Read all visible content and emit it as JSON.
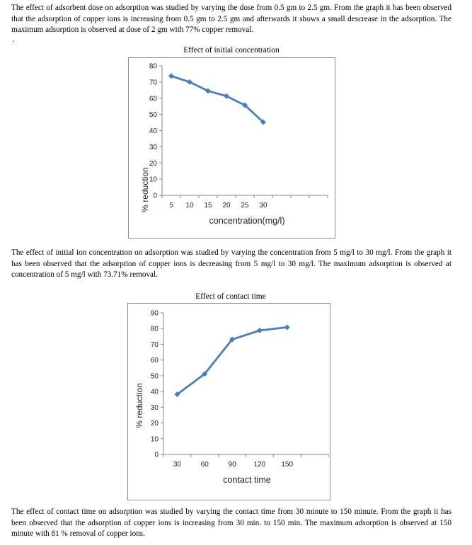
{
  "paragraphs": {
    "dose": "The effect of adsorbent dose on adsorption was studied by varying the dose from  0.5 gm to 2.5 gm. From the graph it has been observed that the adsorption of copper ions is increasing from 0.5 gm to 2.5 gm and afterwards it shows a small descrease in the adsorption. The maximum adsorption is observed at dose of 2 gm with 77% copper removal.",
    "stray_mark": ".",
    "concentration": "The effect of initial ion concentration on adsorption was studied by varying the concentration from 5 mg/l to 30 mg/l. From the graph  it has been observed  that the adsorption of copper ions is decreasing from 5 mg/l  to 30 mg/l. The maximum adsorption is observed at concentration of 5 mg/l  with 73.71% removal.",
    "contact_time": "The effect of contact time on adsorption was studied by varying the contact time from 30 minute to 150 minute. From the graph it has been observed that the adsorption of copper ions is increasing from 30 min. to 150 min. The maximum adsorption is observed at 150 minute with 81 % removal of copper ions."
  },
  "chart_data": [
    {
      "type": "line",
      "title": "Effect of initial concentration",
      "xlabel": "concentration(mg/l)",
      "ylabel": "% reduction",
      "x": [
        5,
        10,
        15,
        20,
        25,
        30
      ],
      "x_tick_labels": [
        "5",
        "10",
        "15",
        "20",
        "25",
        "30"
      ],
      "y_ticks": [
        "0",
        "10",
        "20",
        "30",
        "40",
        "50",
        "60",
        "70",
        "80"
      ],
      "ylim": [
        0,
        80
      ],
      "series": [
        {
          "values": [
            73.7,
            70,
            64.5,
            61.3,
            55.7,
            45.2
          ]
        }
      ],
      "color": "#4a7ebb",
      "grid": false,
      "legend": "none"
    },
    {
      "type": "line",
      "title": "Effect of contact time",
      "xlabel": "contact time",
      "ylabel": "% reduction",
      "x": [
        30,
        60,
        90,
        120,
        150
      ],
      "x_tick_labels": [
        "30",
        "60",
        "90",
        "120",
        "150"
      ],
      "y_ticks": [
        "0",
        "10",
        "20",
        "30",
        "40",
        "50",
        "60",
        "70",
        "80",
        "90"
      ],
      "ylim": [
        0,
        90
      ],
      "series": [
        {
          "values": [
            38.2,
            51.2,
            73.1,
            78.8,
            80.8
          ]
        }
      ],
      "color": "#4a7ebb",
      "grid": false,
      "legend": "none"
    }
  ]
}
